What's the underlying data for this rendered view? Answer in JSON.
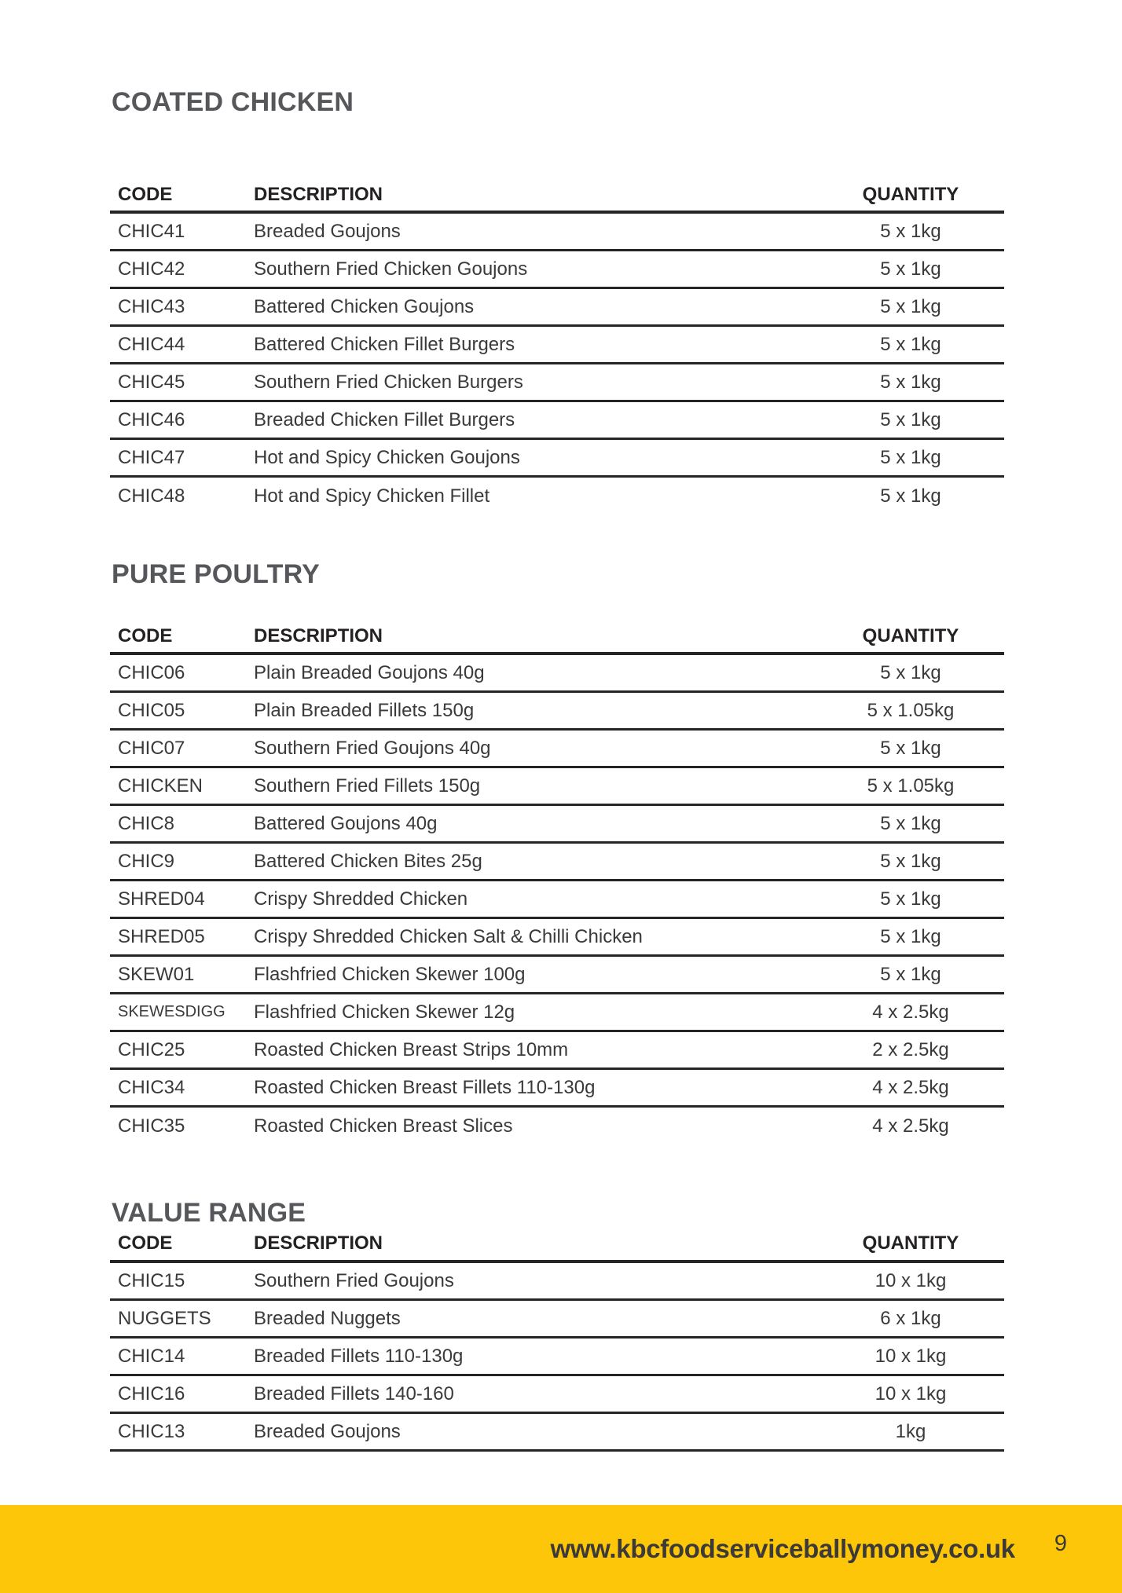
{
  "page": {
    "footer_url": "www.kbcfoodserviceballymoney.co.uk",
    "number": "9",
    "footer_bg": "#fdc608"
  },
  "columns": {
    "code": "CODE",
    "description": "DESCRIPTION",
    "quantity": "QUANTITY"
  },
  "sections": [
    {
      "title": "COATED CHICKEN",
      "rows": [
        {
          "code": "CHIC41",
          "description": "Breaded Goujons",
          "quantity": "5 x 1kg"
        },
        {
          "code": "CHIC42",
          "description": "Southern Fried Chicken Goujons",
          "quantity": "5 x 1kg"
        },
        {
          "code": "CHIC43",
          "description": "Battered Chicken Goujons",
          "quantity": "5 x 1kg"
        },
        {
          "code": "CHIC44",
          "description": "Battered Chicken Fillet Burgers",
          "quantity": "5 x 1kg"
        },
        {
          "code": "CHIC45",
          "description": "Southern Fried Chicken Burgers",
          "quantity": "5 x 1kg"
        },
        {
          "code": "CHIC46",
          "description": "Breaded Chicken Fillet Burgers",
          "quantity": "5 x 1kg"
        },
        {
          "code": "CHIC47",
          "description": "Hot and Spicy Chicken Goujons",
          "quantity": "5 x 1kg"
        },
        {
          "code": "CHIC48",
          "description": "Hot and Spicy Chicken Fillet",
          "quantity": "5 x 1kg"
        }
      ]
    },
    {
      "title": "PURE POULTRY",
      "rows": [
        {
          "code": "CHIC06",
          "description": "Plain Breaded Goujons 40g",
          "quantity": "5 x 1kg"
        },
        {
          "code": "CHIC05",
          "description": "Plain Breaded Fillets 150g",
          "quantity": "5 x 1.05kg"
        },
        {
          "code": "CHIC07",
          "description": "Southern Fried Goujons 40g",
          "quantity": "5 x 1kg"
        },
        {
          "code": "CHICKEN",
          "description": "Southern Fried Fillets 150g",
          "quantity": "5 x 1.05kg"
        },
        {
          "code": "CHIC8",
          "description": "Battered Goujons 40g",
          "quantity": "5 x 1kg"
        },
        {
          "code": "CHIC9",
          "description": "Battered Chicken Bites 25g",
          "quantity": "5 x 1kg"
        },
        {
          "code": "SHRED04",
          "description": "Crispy Shredded Chicken",
          "quantity": "5 x 1kg"
        },
        {
          "code": "SHRED05",
          "description": "Crispy Shredded Chicken Salt & Chilli Chicken",
          "quantity": "5 x 1kg"
        },
        {
          "code": "SKEW01",
          "description": "Flashfried Chicken Skewer 100g",
          "quantity": "5 x 1kg"
        },
        {
          "code": "SKEWESDIGG",
          "description": "Flashfried Chicken Skewer 12g",
          "quantity": "4 x 2.5kg"
        },
        {
          "code": "CHIC25",
          "description": "Roasted Chicken Breast Strips 10mm",
          "quantity": "2 x 2.5kg"
        },
        {
          "code": "CHIC34",
          "description": "Roasted Chicken Breast Fillets 110-130g",
          "quantity": "4 x 2.5kg"
        },
        {
          "code": "CHIC35",
          "description": "Roasted Chicken Breast Slices",
          "quantity": "4 x 2.5kg"
        }
      ]
    },
    {
      "title": "VALUE RANGE",
      "rows": [
        {
          "code": "CHIC15",
          "description": "Southern Fried Goujons",
          "quantity": "10 x 1kg"
        },
        {
          "code": "NUGGETS",
          "description": "Breaded Nuggets",
          "quantity": "6 x 1kg"
        },
        {
          "code": "CHIC14",
          "description": "Breaded Fillets 110-130g",
          "quantity": "10 x 1kg"
        },
        {
          "code": "CHIC16",
          "description": "Breaded Fillets 140-160",
          "quantity": "10 x 1kg"
        },
        {
          "code": "CHIC13",
          "description": "Breaded Goujons",
          "quantity": "1kg"
        }
      ]
    }
  ]
}
